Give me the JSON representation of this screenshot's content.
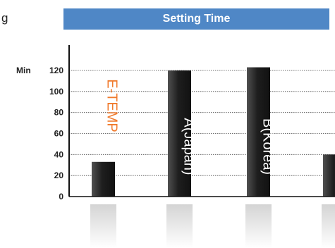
{
  "page_fragment": "g",
  "colors": {
    "title_bar": "#4f87c6",
    "bar_dark": "#1e1e1e",
    "bar_light": "#555555",
    "highlight_label": "#f07a2c",
    "label_white": "#ffffff",
    "gridline": "#444444"
  },
  "chart_data": {
    "type": "bar",
    "title": "Setting Time",
    "ylabel": "Min",
    "ylim": [
      0,
      130
    ],
    "yticks": [
      0,
      20,
      40,
      60,
      80,
      100,
      120
    ],
    "grid": true,
    "categories": [
      "E-TEMP",
      "A(Japan)",
      "B(Korea)",
      ""
    ],
    "values": [
      33,
      120,
      123,
      40
    ],
    "highlight_category": "E-TEMP"
  }
}
